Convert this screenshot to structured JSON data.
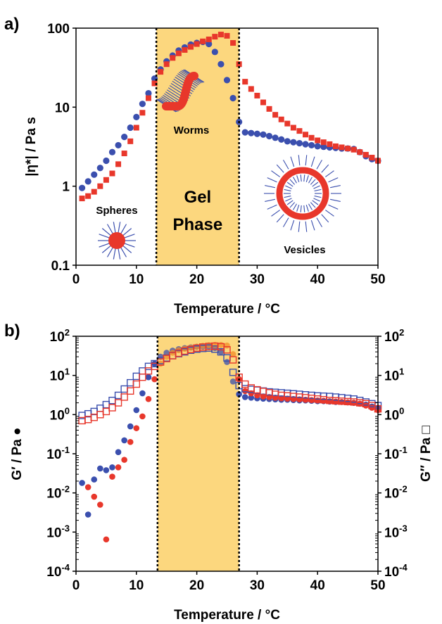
{
  "colors": {
    "blue": "#3b4fae",
    "red": "#e8372b",
    "orange": "#f28c28",
    "gel_fill": "#fcd77e",
    "axis": "#000000"
  },
  "icons": [
    "sphere-micelle-icon",
    "worm-micelle-icon",
    "vesicle-icon"
  ],
  "chart_data": [
    {
      "panel": "a)",
      "type": "scatter",
      "xlabel": "Temperature / °C",
      "ylabel": "|η*| / Pa s",
      "xlim": [
        0,
        50
      ],
      "ylim": [
        0.1,
        100
      ],
      "yscale": "log",
      "xticks": [
        "0",
        "10",
        "20",
        "30",
        "40",
        "50"
      ],
      "yticks": [
        "0.1",
        "1",
        "10",
        "100"
      ],
      "gel_region": [
        13.3,
        27
      ],
      "region_labels": {
        "gel": "Gel",
        "phase": "Phase"
      },
      "annotations": {
        "spheres": "Spheres",
        "worms": "Worms",
        "vesicles": "Vesicles"
      },
      "series": [
        {
          "marker": "circle",
          "color": "blue",
          "x": [
            1,
            2,
            3,
            4,
            5,
            6,
            7,
            8,
            9,
            10,
            11,
            12,
            13,
            14,
            15,
            16,
            17,
            18,
            19,
            20,
            21,
            22,
            23,
            24,
            25,
            26,
            27,
            28,
            29,
            30,
            31,
            32,
            33,
            34,
            35,
            36,
            37,
            38,
            39,
            40,
            41,
            42,
            43,
            44,
            45,
            46,
            47,
            48,
            49,
            50
          ],
          "y": [
            0.95,
            1.15,
            1.4,
            1.7,
            2.1,
            2.7,
            3.3,
            4.2,
            5.5,
            7.5,
            11,
            15,
            23,
            30,
            38,
            45,
            52,
            57,
            62,
            65,
            67,
            63,
            50,
            35,
            22,
            13,
            6.5,
            4.8,
            4.7,
            4.6,
            4.5,
            4.3,
            4.1,
            3.9,
            3.7,
            3.6,
            3.5,
            3.4,
            3.3,
            3.2,
            3.15,
            3.1,
            3.05,
            3.0,
            3.0,
            2.95,
            2.7,
            2.4,
            2.2,
            2.1
          ]
        },
        {
          "marker": "square",
          "color": "red",
          "x": [
            1,
            2,
            3,
            4,
            5,
            6,
            7,
            8,
            9,
            10,
            11,
            12,
            13,
            14,
            15,
            16,
            17,
            18,
            19,
            20,
            21,
            22,
            23,
            24,
            25,
            26,
            27,
            28,
            29,
            30,
            31,
            32,
            33,
            34,
            35,
            36,
            37,
            38,
            39,
            40,
            41,
            42,
            43,
            44,
            45,
            46,
            47,
            48,
            49,
            50
          ],
          "y": [
            0.7,
            0.75,
            0.85,
            1.0,
            1.2,
            1.45,
            1.9,
            2.6,
            3.7,
            5.5,
            8.5,
            13,
            20,
            28,
            35,
            42,
            48,
            53,
            58,
            63,
            68,
            72,
            78,
            83,
            80,
            65,
            35,
            21,
            17,
            14,
            11.5,
            9.5,
            8,
            7,
            6.2,
            5.5,
            5,
            4.5,
            4.1,
            3.8,
            3.6,
            3.4,
            3.2,
            3.1,
            3.0,
            2.9,
            2.7,
            2.5,
            2.3,
            2.1
          ]
        }
      ]
    },
    {
      "panel": "b)",
      "type": "scatter",
      "xlabel": "Temperature / °C",
      "ylabel_left": "G′ / Pa ●",
      "ylabel_right": "G″ / Pa □",
      "xlim": [
        0,
        50
      ],
      "ylim_exp": [
        -4,
        2
      ],
      "yscale": "log",
      "xticks": [
        "0",
        "10",
        "20",
        "30",
        "40",
        "50"
      ],
      "ytick_base": "10",
      "ytick_exps": [
        "2",
        "1",
        "0",
        "-1",
        "-2",
        "-3",
        "-4"
      ],
      "gel_region": [
        13.5,
        27
      ],
      "series": [
        {
          "name": "",
          "marker": "circle",
          "color": "blue",
          "x": [
            1,
            2,
            3,
            4,
            5,
            6,
            7,
            8,
            9,
            10,
            11,
            12,
            13,
            14,
            15,
            16,
            17,
            18,
            19,
            20,
            21,
            22,
            23,
            24,
            25,
            26,
            27,
            28,
            29,
            30,
            31,
            32,
            33,
            34,
            35,
            36,
            37,
            38,
            39,
            40,
            41,
            42,
            43,
            44,
            45,
            46,
            47,
            48,
            49,
            50
          ],
          "y": [
            0.018,
            0.0028,
            0.022,
            0.042,
            0.038,
            0.045,
            0.11,
            0.22,
            0.5,
            1.3,
            3.5,
            9,
            20,
            30,
            38,
            43,
            47,
            50,
            52,
            54,
            55,
            55,
            50,
            40,
            22,
            7,
            3.3,
            2.8,
            2.7,
            2.6,
            2.55,
            2.5,
            2.45,
            2.4,
            2.4,
            2.35,
            2.3,
            2.3,
            2.25,
            2.2,
            2.2,
            2.15,
            2.1,
            2.1,
            2.05,
            2.0,
            1.9,
            1.8,
            1.6,
            1.5
          ]
        },
        {
          "name": "",
          "marker": "circle",
          "color": "red",
          "x": [
            2,
            3,
            4,
            5,
            6,
            7,
            8,
            9,
            10,
            11,
            12,
            13,
            14,
            15,
            16,
            17,
            18,
            19,
            20,
            21,
            22,
            23,
            24,
            25,
            26,
            27,
            28,
            29,
            30,
            31,
            32,
            33,
            34,
            35,
            36,
            37,
            38,
            39,
            40,
            41,
            42,
            43,
            44,
            45,
            46,
            47,
            48,
            49,
            50
          ],
          "y": [
            0.014,
            0.008,
            0.005,
            0.00065,
            0.026,
            0.045,
            0.07,
            0.2,
            0.45,
            0.9,
            2.5,
            8,
            20,
            30,
            38,
            44,
            48,
            51,
            54,
            57,
            59,
            60,
            60,
            58,
            35,
            8,
            4,
            3.5,
            3.1,
            2.9,
            2.8,
            2.7,
            2.6,
            2.55,
            2.5,
            2.45,
            2.4,
            2.35,
            2.3,
            2.25,
            2.2,
            2.15,
            2.1,
            2.05,
            2.0,
            1.9,
            1.7,
            1.5,
            1.3
          ]
        },
        {
          "name": "",
          "marker": "square-open",
          "color": "blue",
          "x": [
            1,
            2,
            3,
            4,
            5,
            6,
            7,
            8,
            9,
            10,
            11,
            12,
            13,
            14,
            15,
            16,
            17,
            18,
            19,
            20,
            21,
            22,
            23,
            24,
            25,
            26,
            27,
            28,
            29,
            30,
            31,
            32,
            33,
            34,
            35,
            36,
            37,
            38,
            39,
            40,
            41,
            42,
            43,
            44,
            45,
            46,
            47,
            48,
            49,
            50
          ],
          "y": [
            0.95,
            1.05,
            1.2,
            1.45,
            1.8,
            2.3,
            3.1,
            4.5,
            6.5,
            9.5,
            13,
            17,
            20,
            24,
            28,
            32,
            36,
            40,
            44,
            47,
            49,
            50,
            47,
            40,
            28,
            12,
            5.5,
            4.6,
            4.4,
            4.2,
            4.0,
            3.8,
            3.7,
            3.6,
            3.5,
            3.4,
            3.3,
            3.2,
            3.1,
            3.0,
            2.95,
            2.9,
            2.8,
            2.7,
            2.6,
            2.5,
            2.3,
            2.1,
            1.9,
            1.7
          ]
        },
        {
          "name": "",
          "marker": "square-open",
          "color": "red",
          "x": [
            1,
            2,
            3,
            4,
            5,
            6,
            7,
            8,
            9,
            10,
            11,
            12,
            13,
            14,
            15,
            16,
            17,
            18,
            19,
            20,
            21,
            22,
            23,
            24,
            25,
            26,
            27,
            28,
            29,
            30,
            31,
            32,
            33,
            34,
            35,
            36,
            37,
            38,
            39,
            40,
            41,
            42,
            43,
            44,
            45,
            46,
            47,
            48,
            49,
            50
          ],
          "y": [
            0.7,
            0.75,
            0.85,
            1.0,
            1.2,
            1.5,
            2.0,
            2.8,
            4.0,
            6.0,
            9.0,
            13,
            17,
            22,
            27,
            32,
            37,
            42,
            46,
            50,
            53,
            55,
            56,
            54,
            45,
            25,
            9,
            6,
            4.8,
            4.3,
            3.9,
            3.6,
            3.3,
            3.1,
            3.0,
            2.9,
            2.8,
            2.7,
            2.6,
            2.5,
            2.4,
            2.3,
            2.25,
            2.2,
            2.15,
            2.1,
            2.0,
            1.9,
            1.7,
            1.4
          ]
        }
      ]
    }
  ]
}
